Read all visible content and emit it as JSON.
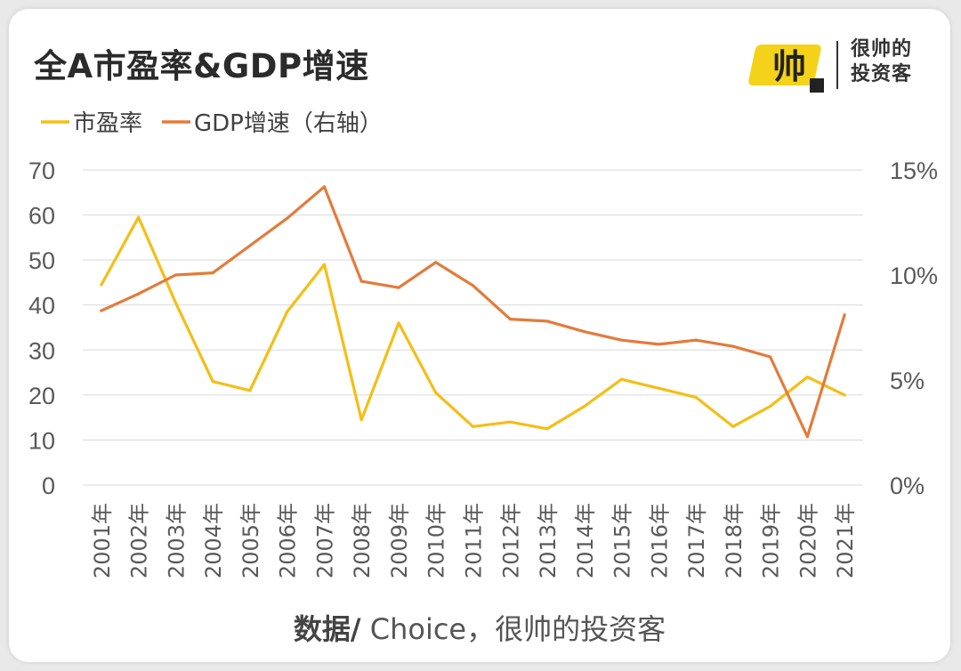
{
  "title": "全A市盈率&GDP增速",
  "logo": {
    "mark_text": "帅",
    "name": "很帅的投资客"
  },
  "source": {
    "prefix": "数据/",
    "text": " Choice，很帅的投资客"
  },
  "colors": {
    "pe": "#F5BE16",
    "gdp": "#E37B3A",
    "grid": "#d9d9d9",
    "tick": "#595959"
  },
  "chart_data": {
    "type": "line",
    "title": "全A市盈率&GDP增速",
    "categories": [
      "2001年",
      "2002年",
      "2003年",
      "2004年",
      "2005年",
      "2006年",
      "2007年",
      "2008年",
      "2009年",
      "2010年",
      "2011年",
      "2012年",
      "2013年",
      "2014年",
      "2015年",
      "2016年",
      "2017年",
      "2018年",
      "2019年",
      "2020年",
      "2021年"
    ],
    "series": [
      {
        "name": "市盈率",
        "axis": "left",
        "color": "#F5BE16",
        "values": [
          44.5,
          59.5,
          40.5,
          23,
          21,
          38.5,
          49,
          14.5,
          36,
          20.5,
          13,
          14,
          12.5,
          17.5,
          23.5,
          21.5,
          19.5,
          13,
          17.5,
          24,
          20
        ]
      },
      {
        "name": "GDP增速（右轴）",
        "axis": "right",
        "color": "#E37B3A",
        "values": [
          8.3,
          9.1,
          10.0,
          10.1,
          11.4,
          12.7,
          14.2,
          9.7,
          9.4,
          10.6,
          9.5,
          7.9,
          7.8,
          7.3,
          6.9,
          6.7,
          6.9,
          6.6,
          6.1,
          2.3,
          8.1
        ]
      }
    ],
    "y_left": {
      "ylim": [
        0,
        70
      ],
      "ticks": [
        "0",
        "10",
        "20",
        "30",
        "40",
        "50",
        "60",
        "70"
      ],
      "tick_values": [
        0,
        10,
        20,
        30,
        40,
        50,
        60,
        70
      ]
    },
    "y_right": {
      "ylim": [
        0,
        15
      ],
      "ticks": [
        "0%",
        "5%",
        "10%",
        "15%"
      ],
      "tick_values": [
        0,
        5,
        10,
        15
      ]
    },
    "legend": {
      "position": "top-left",
      "entries": [
        "市盈率",
        "GDP增速（右轴）"
      ]
    },
    "grid": true
  }
}
